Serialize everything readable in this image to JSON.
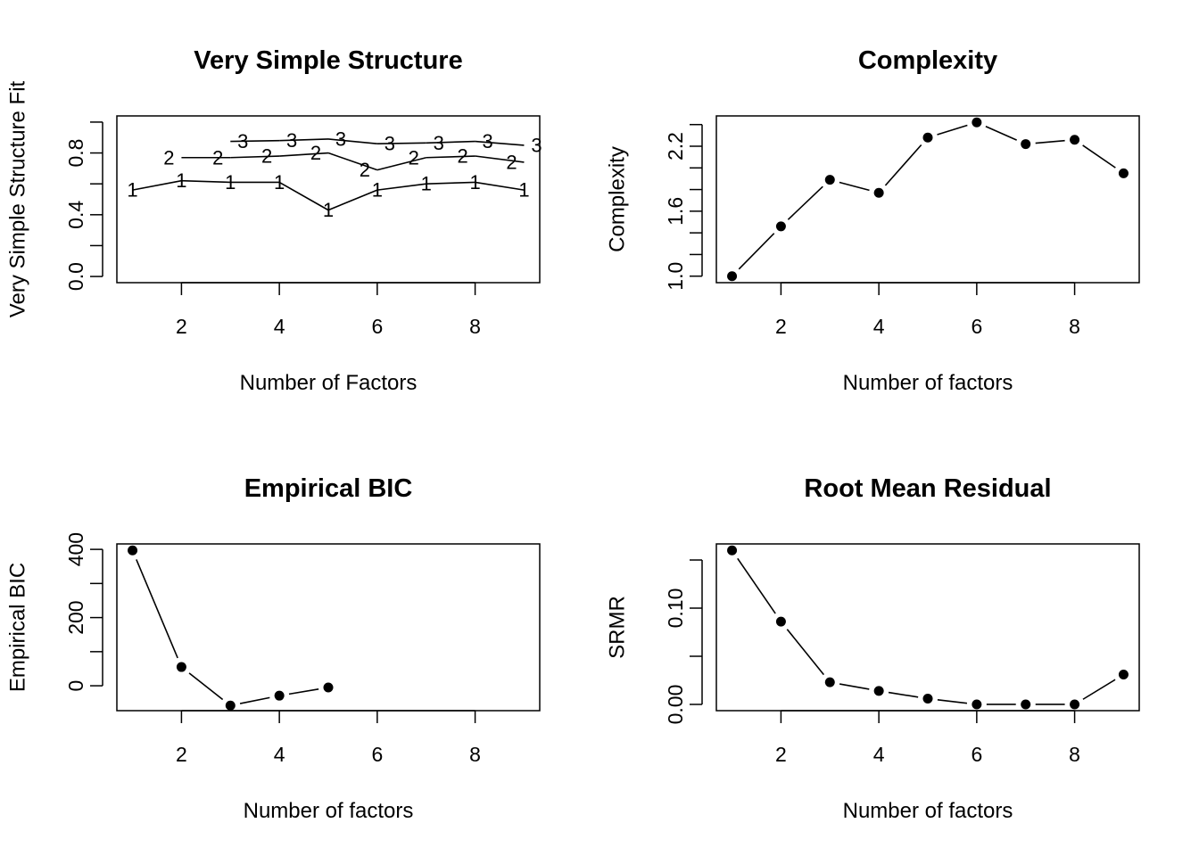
{
  "chart_data": [
    {
      "type": "line",
      "title": "Very Simple Structure",
      "xlabel": "Number of Factors",
      "ylabel": "Very Simple Structure Fit",
      "xlim": [
        0.68,
        9.32
      ],
      "ylim": [
        -0.04,
        1.04
      ],
      "xticks": [
        2,
        4,
        6,
        8
      ],
      "xticklabels": [
        "2",
        "4",
        "6",
        "8"
      ],
      "yticks": [
        0,
        0.2,
        0.4,
        0.6,
        0.8,
        1.0
      ],
      "yticklabels": [
        "0.0",
        "",
        "0.4",
        "",
        "0.8",
        ""
      ],
      "marker": "series-number",
      "series": [
        {
          "name": "1",
          "x": [
            1,
            2,
            3,
            4,
            5,
            6,
            7,
            8,
            9
          ],
          "values": [
            0.56,
            0.62,
            0.61,
            0.61,
            0.43,
            0.56,
            0.6,
            0.61,
            0.56
          ]
        },
        {
          "name": "2",
          "x": [
            2,
            3,
            4,
            5,
            6,
            7,
            8,
            9
          ],
          "values": [
            0.77,
            0.77,
            0.78,
            0.8,
            0.69,
            0.77,
            0.78,
            0.74
          ]
        },
        {
          "name": "3",
          "x": [
            3,
            4,
            5,
            6,
            7,
            8,
            9
          ],
          "values": [
            0.875,
            0.88,
            0.89,
            0.86,
            0.865,
            0.875,
            0.85
          ]
        }
      ]
    },
    {
      "type": "line",
      "title": "Complexity",
      "xlabel": "Number of factors",
      "ylabel": "Complexity",
      "xlim": [
        0.68,
        9.32
      ],
      "ylim": [
        0.94,
        2.48
      ],
      "xticks": [
        2,
        4,
        6,
        8
      ],
      "xticklabels": [
        "2",
        "4",
        "6",
        "8"
      ],
      "yticks": [
        1.0,
        1.2,
        1.4,
        1.6,
        1.8,
        2.0,
        2.2,
        2.4
      ],
      "yticklabels": [
        "1.0",
        "",
        "",
        "1.6",
        "",
        "",
        "2.2",
        ""
      ],
      "marker": "dot",
      "series": [
        {
          "name": "Complexity",
          "x": [
            1,
            2,
            3,
            4,
            5,
            6,
            7,
            8,
            9
          ],
          "values": [
            1.0,
            1.46,
            1.89,
            1.77,
            2.28,
            2.42,
            2.22,
            2.26,
            1.95
          ]
        }
      ]
    },
    {
      "type": "line",
      "title": "Empirical BIC",
      "xlabel": "Number of factors",
      "ylabel": "Empirical BIC",
      "xlim": [
        0.68,
        9.32
      ],
      "ylim": [
        -73,
        416
      ],
      "xticks": [
        2,
        4,
        6,
        8
      ],
      "xticklabels": [
        "2",
        "4",
        "6",
        "8"
      ],
      "yticks": [
        0,
        100,
        200,
        300,
        400
      ],
      "yticklabels": [
        "0",
        "",
        "200",
        "",
        "400"
      ],
      "marker": "dot",
      "series": [
        {
          "name": "Empirical BIC",
          "x": [
            1,
            2,
            3,
            4,
            5
          ],
          "values": [
            397,
            55,
            -58,
            -29,
            -5
          ]
        }
      ]
    },
    {
      "type": "line",
      "title": "Root Mean Residual",
      "xlabel": "Number of factors",
      "ylabel": "SRMR",
      "xlim": [
        0.68,
        9.32
      ],
      "ylim": [
        -0.0065,
        0.1667
      ],
      "xticks": [
        2,
        4,
        6,
        8
      ],
      "xticklabels": [
        "2",
        "4",
        "6",
        "8"
      ],
      "yticks": [
        0,
        0.05,
        0.1,
        0.15
      ],
      "yticklabels": [
        "0.00",
        "",
        "0.10",
        ""
      ],
      "marker": "dot",
      "series": [
        {
          "name": "SRMR",
          "x": [
            1,
            2,
            3,
            4,
            5,
            6,
            7,
            8,
            9
          ],
          "values": [
            0.16,
            0.086,
            0.023,
            0.014,
            0.006,
            0.0,
            0.0,
            0.0,
            0.031
          ]
        }
      ]
    }
  ]
}
